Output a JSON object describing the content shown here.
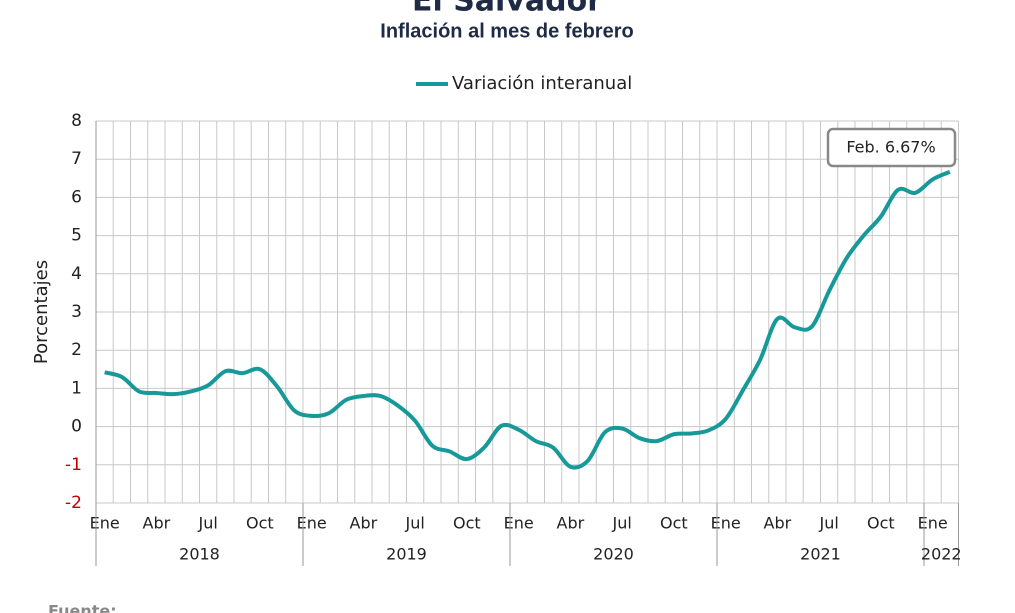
{
  "chart_data": {
    "type": "line",
    "title": "El Salvador",
    "subtitle": "Inflación al mes de febrero",
    "y_label": "Porcentajes",
    "categories": [
      "Ene",
      null,
      null,
      "Abr",
      null,
      null,
      "Jul",
      null,
      null,
      "Oct",
      null,
      null,
      "Ene",
      null,
      null,
      "Abr",
      null,
      null,
      "Jul",
      null,
      null,
      "Oct",
      null,
      null,
      "Ene",
      null,
      null,
      "Abr",
      null,
      null,
      "Jul",
      null,
      null,
      "Oct",
      null,
      null,
      "Ene",
      null,
      null,
      "Abr",
      null,
      null,
      "Jul",
      null,
      null,
      "Oct",
      null,
      null,
      "Ene",
      null
    ],
    "years": [
      "2018",
      "2019",
      "2020",
      "2021",
      "2022"
    ],
    "series": [
      {
        "name": "Variación interanual",
        "color": "#17999a",
        "values": [
          1.42,
          1.3,
          0.92,
          0.88,
          0.85,
          0.92,
          1.08,
          1.45,
          1.4,
          1.5,
          1.05,
          0.42,
          0.28,
          0.35,
          0.7,
          0.8,
          0.8,
          0.55,
          0.15,
          -0.5,
          -0.65,
          -0.85,
          -0.55,
          0.02,
          -0.08,
          -0.38,
          -0.55,
          -1.05,
          -0.9,
          -0.15,
          -0.05,
          -0.3,
          -0.38,
          -0.2,
          -0.18,
          -0.1,
          0.2,
          0.95,
          1.75,
          2.82,
          2.6,
          2.62,
          3.55,
          4.4,
          5.0,
          5.5,
          6.2,
          6.12,
          6.47,
          6.67
        ]
      }
    ],
    "ylim": [
      -2,
      8
    ],
    "yticks": [
      -2,
      -1,
      0,
      1,
      2,
      3,
      4,
      5,
      6,
      7,
      8
    ],
    "negative_tick_color": "#c00000",
    "grid": true,
    "legend": "top",
    "annotation": "Feb. 6.67%",
    "source": "Fuente:"
  }
}
